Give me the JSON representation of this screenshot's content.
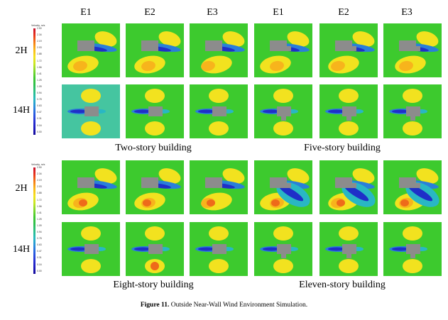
{
  "columns": [
    "E1",
    "E2",
    "E3",
    "E1",
    "E2",
    "E3"
  ],
  "rows": [
    "2H",
    "14H"
  ],
  "blocks": [
    {
      "captions": [
        "Two-story building",
        "Five-story building"
      ]
    },
    {
      "captions": [
        "Eight-story building",
        "Eleven-story building"
      ]
    }
  ],
  "legend": {
    "title": "Velocity, m/s",
    "ticks": [
      "2.50",
      "2.34",
      "2.19",
      "2.03",
      "1.88",
      "1.72",
      "1.56",
      "1.41",
      "1.25",
      "1.09",
      "0.94",
      "0.78",
      "0.63",
      "0.47",
      "0.31",
      "0.16",
      "0.00"
    ],
    "colors": [
      "#c8102e",
      "#e8341b",
      "#f57d16",
      "#f9b81a",
      "#f4e11e",
      "#c9e624",
      "#7fd72e",
      "#3fc82f",
      "#2fbf4f",
      "#2bbf8a",
      "#28b8c2",
      "#2a8fd9",
      "#2a5fe0",
      "#2a35d6",
      "#1f1cc0",
      "#150a9a"
    ]
  },
  "caption": {
    "label": "Figure 11.",
    "text": " Outside Near-Wall Wind Environment Simulation."
  }
}
